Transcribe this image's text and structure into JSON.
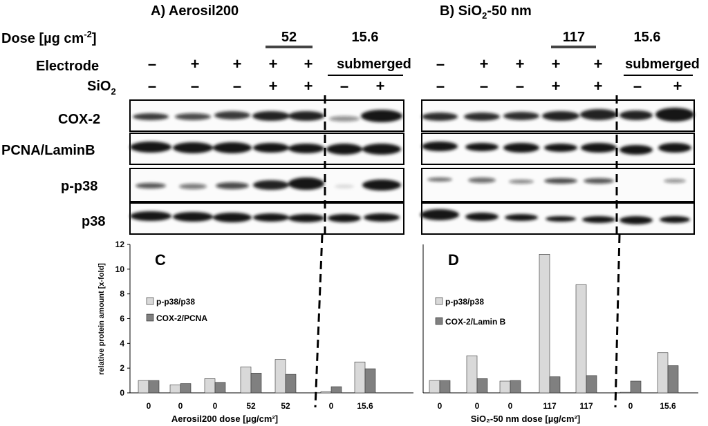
{
  "panel_titles": {
    "a": "A) Aerosil200",
    "b_prefix": "B) SiO",
    "b_sub": "2",
    "b_suffix": "-50 nm"
  },
  "row_labels": {
    "dose_prefix": "Dose [µg cm",
    "dose_sup": "-2",
    "dose_suffix": "]",
    "electrode": "Electrode",
    "sio2": "SiO",
    "sio2_sub": "2"
  },
  "band_labels": [
    "COX-2",
    "PCNA/LaminB",
    "p-p38",
    "p38"
  ],
  "panel_a": {
    "dose_group_label": "52",
    "dose_sub_label": "15.6",
    "submerged_label": "submerged",
    "electrode": [
      "–",
      "+",
      "+",
      "+",
      "+"
    ],
    "sio2": [
      "–",
      "–",
      "–",
      "+",
      "+",
      "–",
      "+"
    ]
  },
  "panel_b": {
    "dose_group_label": "117",
    "dose_sub_label": "15.6",
    "submerged_label": "submerged",
    "electrode": [
      "–",
      "+",
      "+",
      "+",
      "+"
    ],
    "sio2": [
      "–",
      "–",
      "–",
      "+",
      "+",
      "–",
      "+"
    ]
  },
  "chart_data": [
    {
      "type": "bar",
      "panel_letter": "C",
      "categories": [
        "0",
        "0",
        "0",
        "52",
        "52",
        "0",
        "15.6"
      ],
      "series": [
        {
          "name": "p-p38/p38",
          "color": "#d9d9d9",
          "values": [
            1.0,
            0.65,
            1.15,
            2.1,
            2.7,
            0.1,
            2.5
          ]
        },
        {
          "name": "COX-2/PCNA",
          "color": "#808080",
          "values": [
            1.0,
            0.75,
            0.85,
            1.6,
            1.5,
            0.5,
            1.95
          ]
        }
      ],
      "xlabel": "Aerosil200 dose [µg/cm²]",
      "ylabel": "relative protein amount [x-fold]",
      "ylim": [
        0,
        12
      ],
      "yticks": [
        0,
        2,
        4,
        6,
        8,
        10,
        12
      ],
      "legend": "left"
    },
    {
      "type": "bar",
      "panel_letter": "D",
      "categories": [
        "0",
        "0",
        "0",
        "117",
        "117",
        "0",
        "15.6"
      ],
      "series": [
        {
          "name": "p-p38/p38",
          "color": "#d9d9d9",
          "values": [
            1.0,
            3.0,
            0.95,
            11.2,
            8.75,
            0.05,
            3.25
          ]
        },
        {
          "name": "COX-2/Lamin B",
          "color": "#808080",
          "values": [
            1.0,
            1.15,
            1.0,
            1.3,
            1.4,
            0.95,
            2.2
          ]
        }
      ],
      "xlabel": "SiO₂-50 nm dose [µg/cm²]",
      "ylim": [
        0,
        12
      ],
      "legend": "left"
    }
  ]
}
